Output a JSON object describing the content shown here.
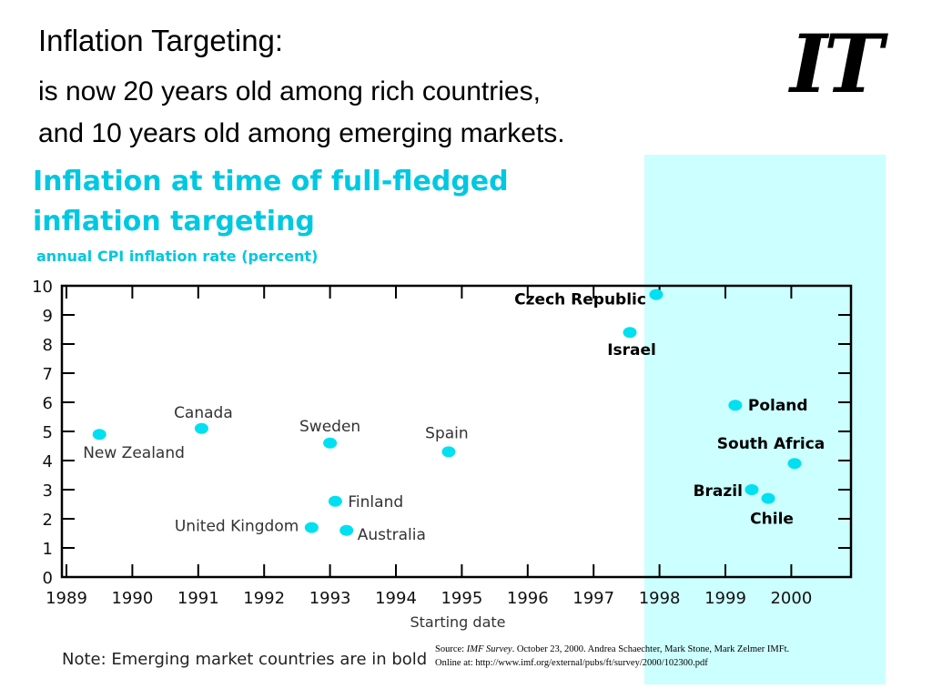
{
  "slide": {
    "title": "Inflation Targeting:",
    "subtitle_line1": "is now 20 years old among rich countries,",
    "subtitle_line2": "and 10 years old among emerging markets.",
    "logo_text": "IT"
  },
  "note": "Note: Emerging market countries are in bold",
  "source": {
    "prefix": "Source: ",
    "publication": "IMF Survey",
    "text": ". October 23, 2000. Andrea Schaechter, Mark Stone, Mark Zelmer  IMFt.",
    "online": "Online at: http://www.imf.org/external/pubs/ft/survey/2000/102300.pdf"
  },
  "colors": {
    "point": "#00e0f0",
    "title": "#00c8e0",
    "emerging_band": "#ccffff",
    "axis": "#000000"
  },
  "chart_data": {
    "type": "scatter",
    "title": "Inflation at time of full-fledged inflation targeting",
    "subtitle": "annual CPI inflation rate (percent)",
    "xlabel": "Starting date",
    "ylabel": "",
    "xlim": [
      1989,
      2000.8
    ],
    "ylim": [
      0,
      10
    ],
    "x_ticks": [
      1989,
      1990,
      1991,
      1992,
      1993,
      1994,
      1995,
      1996,
      1997,
      1998,
      1999,
      2000
    ],
    "y_ticks": [
      0,
      1,
      2,
      3,
      4,
      5,
      6,
      7,
      8,
      9,
      10
    ],
    "grid": false,
    "points": [
      {
        "label": "New Zealand",
        "x": 1989.5,
        "y": 4.9,
        "emerging": false
      },
      {
        "label": "Canada",
        "x": 1991.05,
        "y": 5.1,
        "emerging": false
      },
      {
        "label": "Sweden",
        "x": 1993.0,
        "y": 4.6,
        "emerging": false
      },
      {
        "label": "Finland",
        "x": 1993.08,
        "y": 2.6,
        "emerging": false
      },
      {
        "label": "United Kingdom",
        "x": 1992.72,
        "y": 1.7,
        "emerging": false
      },
      {
        "label": "Australia",
        "x": 1993.25,
        "y": 1.6,
        "emerging": false
      },
      {
        "label": "Spain",
        "x": 1994.8,
        "y": 4.3,
        "emerging": false
      },
      {
        "label": "Czech Republic",
        "x": 1997.95,
        "y": 9.7,
        "emerging": true
      },
      {
        "label": "Israel",
        "x": 1997.55,
        "y": 8.4,
        "emerging": true
      },
      {
        "label": "Poland",
        "x": 1999.15,
        "y": 5.9,
        "emerging": true
      },
      {
        "label": "South Africa",
        "x": 2000.05,
        "y": 3.9,
        "emerging": true
      },
      {
        "label": "Brazil",
        "x": 1999.4,
        "y": 3.0,
        "emerging": true
      },
      {
        "label": "Chile",
        "x": 1999.65,
        "y": 2.7,
        "emerging": true
      }
    ]
  }
}
